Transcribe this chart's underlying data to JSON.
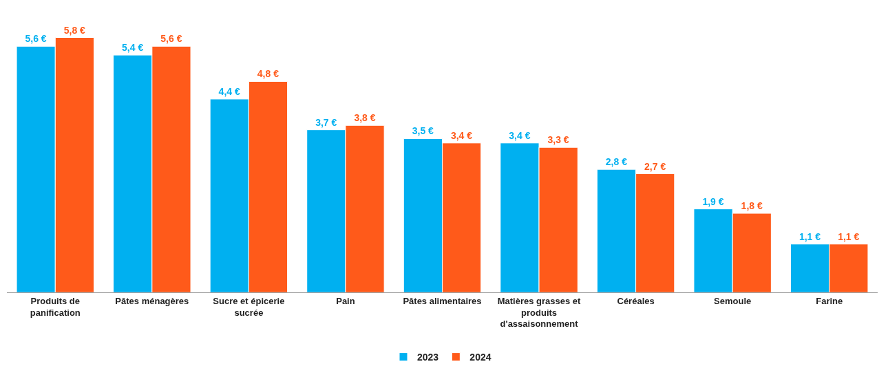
{
  "chart_data": {
    "type": "bar",
    "categories": [
      "Produits de panification",
      "Pâtes ménagères",
      "Sucre et épicerie sucrée",
      "Pain",
      "Pâtes alimentaires",
      "Matières grasses et produits d'assaisonnement",
      "Céréales",
      "Semoule",
      "Farine"
    ],
    "series": [
      {
        "name": "2023",
        "color": "#00b0f0",
        "values": [
          5.6,
          5.4,
          4.4,
          3.7,
          3.5,
          3.4,
          2.8,
          1.9,
          1.1
        ],
        "value_labels": [
          "5,6 €",
          "5,4 €",
          "4,4 €",
          "3,7 €",
          "3,5 €",
          "3,4 €",
          "2,8 €",
          "1,9 €",
          "1,1 €"
        ]
      },
      {
        "name": "2024",
        "color": "#ff5a1a",
        "values": [
          5.8,
          5.6,
          4.8,
          3.8,
          3.4,
          3.3,
          2.7,
          1.8,
          1.1
        ],
        "value_labels": [
          "5,8 €",
          "5,6 €",
          "4,8 €",
          "3,8 €",
          "3,4 €",
          "3,3 €",
          "2,7 €",
          "1,8 €",
          "1,1 €"
        ]
      }
    ],
    "grid": false,
    "legend": "bottom"
  }
}
